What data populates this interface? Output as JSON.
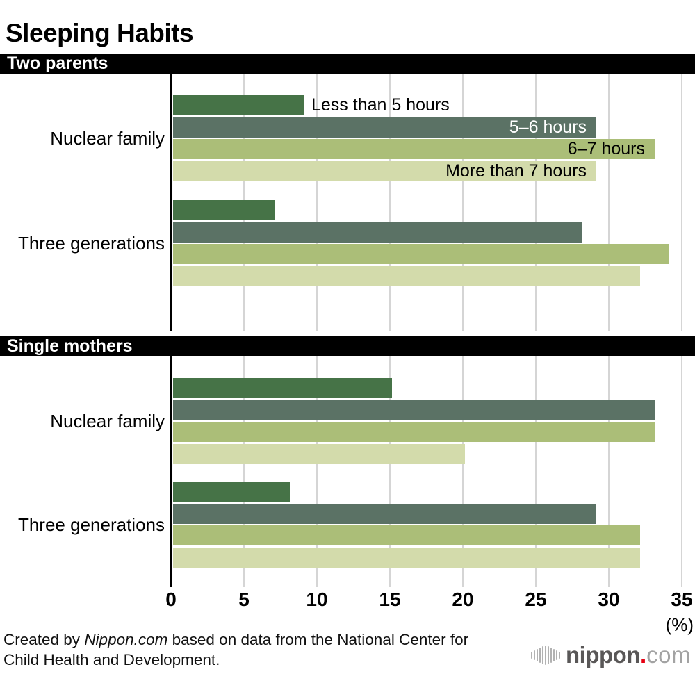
{
  "chart_data": {
    "type": "bar",
    "orientation": "horizontal",
    "title": "Sleeping Habits",
    "xlim": [
      0,
      35
    ],
    "x_ticks": [
      0,
      5,
      10,
      15,
      20,
      25,
      30,
      35
    ],
    "x_unit_label": "(%)",
    "grid": true,
    "banner_bg": "#000000",
    "banner_text_color": "#ffffff",
    "series": [
      {
        "name": "Less than 5 hours",
        "color": "#467347",
        "label_placement": "outside",
        "label_color": "#000000"
      },
      {
        "name": "5–6 hours",
        "color": "#5B7265",
        "label_placement": "inside",
        "label_color": "#ffffff"
      },
      {
        "name": "6–7 hours",
        "color": "#ABBE78",
        "label_placement": "inside",
        "label_color": "#000000"
      },
      {
        "name": "More than 7 hours",
        "color": "#D3DBAB",
        "label_placement": "inside",
        "label_color": "#000000"
      }
    ],
    "sections": [
      {
        "title": "Two parents",
        "groups": [
          {
            "label": "Nuclear family",
            "values": [
              9,
              29,
              33,
              29
            ],
            "show_series_labels": true
          },
          {
            "label": "Three generations",
            "values": [
              7,
              28,
              34,
              32
            ],
            "show_series_labels": false
          }
        ]
      },
      {
        "title": "Single mothers",
        "groups": [
          {
            "label": "Nuclear family",
            "values": [
              15,
              33,
              33,
              20
            ],
            "show_series_labels": false
          },
          {
            "label": "Three generations",
            "values": [
              8,
              29,
              32,
              32
            ],
            "show_series_labels": false
          }
        ]
      }
    ],
    "source_note": "Created by Nippon.com based on data from the National Center for Child Health and Development."
  },
  "footer": {
    "line1_prefix": "Created by ",
    "line1_brand": "Nippon.com",
    "line1_rest": " based on data from the National Center for",
    "line2": "Child Health and Development."
  },
  "logo": {
    "name": "nippon",
    "dot": ".",
    "tld": "com",
    "name_color": "#595757",
    "dot_color": "#E60012",
    "tld_color": "#a3a3a3"
  }
}
